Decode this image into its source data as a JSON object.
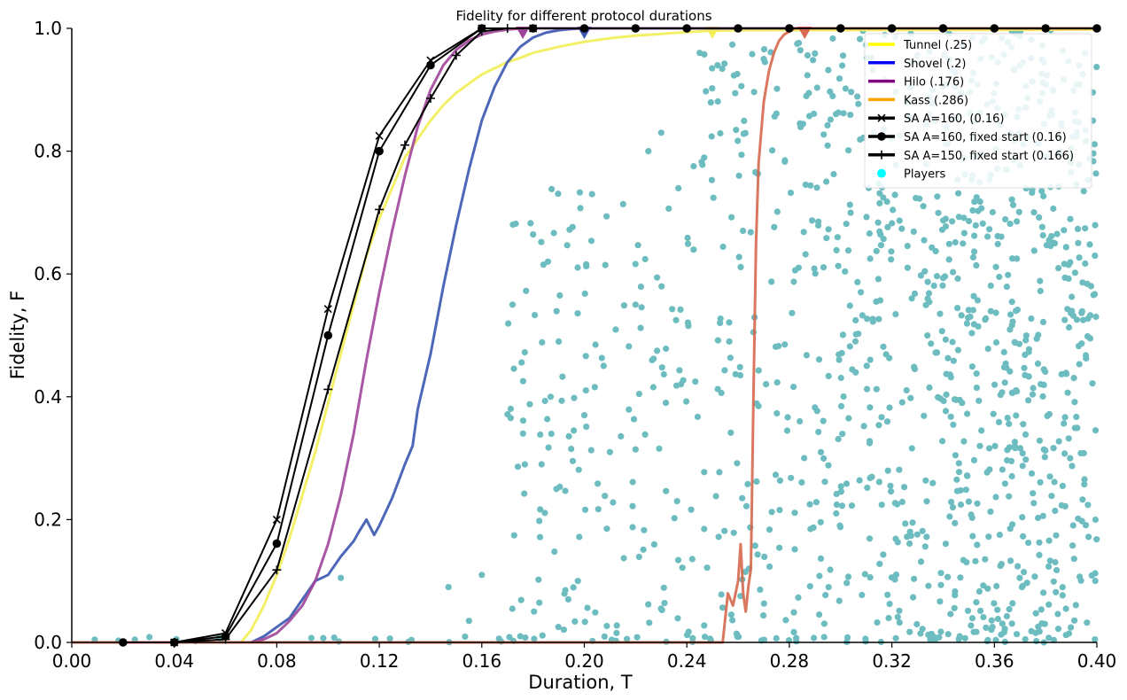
{
  "chart_data": {
    "type": "line",
    "title": "Fidelity for different protocol durations",
    "xlabel": "Duration, T",
    "ylabel": "Fidelity, F",
    "xlim": [
      0,
      0.4
    ],
    "ylim": [
      0,
      1
    ],
    "xticks": [
      "0.00",
      "0.04",
      "0.08",
      "0.12",
      "0.16",
      "0.20",
      "0.24",
      "0.28",
      "0.32",
      "0.36",
      "0.40"
    ],
    "yticks": [
      "0.0",
      "0.2",
      "0.4",
      "0.6",
      "0.8",
      "1.0"
    ],
    "legend_position": "top-right",
    "series": [
      {
        "name": "Tunnel (.25)",
        "color": "#f2ee58",
        "legend_color": "#ffff00",
        "marker": "triangle-down",
        "marker_at": [
          0.25,
          1.0
        ],
        "x": [
          0.066,
          0.07,
          0.075,
          0.08,
          0.085,
          0.09,
          0.095,
          0.1,
          0.105,
          0.11,
          0.115,
          0.12,
          0.125,
          0.13,
          0.135,
          0.14,
          0.145,
          0.15,
          0.155,
          0.16,
          0.165,
          0.17,
          0.175,
          0.18,
          0.19,
          0.2,
          0.21,
          0.22,
          0.23,
          0.24,
          0.25,
          0.26,
          0.4
        ],
        "y": [
          0.0,
          0.02,
          0.06,
          0.11,
          0.17,
          0.24,
          0.31,
          0.39,
          0.47,
          0.55,
          0.63,
          0.69,
          0.74,
          0.79,
          0.82,
          0.85,
          0.875,
          0.895,
          0.91,
          0.925,
          0.935,
          0.945,
          0.952,
          0.96,
          0.97,
          0.978,
          0.984,
          0.988,
          0.991,
          0.994,
          0.996,
          0.997,
          0.998
        ]
      },
      {
        "name": "Shovel (.2)",
        "color": "#3a56b0",
        "legend_color": "#0000ff",
        "marker": "triangle-down",
        "marker_at": [
          0.2,
          1.0
        ],
        "x": [
          0.07,
          0.075,
          0.08,
          0.085,
          0.09,
          0.095,
          0.1,
          0.105,
          0.11,
          0.112,
          0.115,
          0.118,
          0.12,
          0.125,
          0.13,
          0.133,
          0.135,
          0.14,
          0.145,
          0.15,
          0.155,
          0.16,
          0.165,
          0.17,
          0.175,
          0.18,
          0.185,
          0.19,
          0.195,
          0.2,
          0.21,
          0.4
        ],
        "y": [
          0.0,
          0.01,
          0.025,
          0.04,
          0.07,
          0.1,
          0.11,
          0.14,
          0.165,
          0.18,
          0.2,
          0.175,
          0.19,
          0.235,
          0.29,
          0.32,
          0.38,
          0.47,
          0.58,
          0.68,
          0.77,
          0.85,
          0.905,
          0.945,
          0.97,
          0.985,
          0.993,
          0.997,
          0.999,
          1.0,
          1.0,
          1.0
        ]
      },
      {
        "name": "Hilo (.176)",
        "color": "#a0449a",
        "legend_color": "#800080",
        "marker": "triangle-down",
        "marker_at": [
          0.176,
          1.0
        ],
        "x": [
          0.07,
          0.075,
          0.08,
          0.085,
          0.09,
          0.095,
          0.1,
          0.105,
          0.11,
          0.115,
          0.12,
          0.125,
          0.13,
          0.135,
          0.14,
          0.145,
          0.15,
          0.155,
          0.16,
          0.165,
          0.17,
          0.176,
          0.4
        ],
        "y": [
          0.0,
          0.005,
          0.015,
          0.035,
          0.06,
          0.1,
          0.16,
          0.24,
          0.34,
          0.46,
          0.57,
          0.67,
          0.76,
          0.84,
          0.9,
          0.94,
          0.965,
          0.98,
          0.99,
          0.995,
          0.998,
          1.0,
          1.0
        ]
      },
      {
        "name": "Kass (.286)",
        "color": "#d5684e",
        "legend_color": "#ffa500",
        "marker": "triangle-down",
        "marker_at": [
          0.286,
          1.0
        ],
        "x": [
          0.0,
          0.254,
          0.256,
          0.258,
          0.26,
          0.261,
          0.262,
          0.263,
          0.264,
          0.265,
          0.266,
          0.267,
          0.268,
          0.27,
          0.272,
          0.274,
          0.276,
          0.278,
          0.28,
          0.282,
          0.286,
          0.4
        ],
        "y": [
          0.0,
          0.0,
          0.08,
          0.06,
          0.1,
          0.16,
          0.08,
          0.05,
          0.09,
          0.12,
          0.4,
          0.65,
          0.78,
          0.88,
          0.93,
          0.96,
          0.98,
          0.99,
          0.995,
          1.0,
          1.0,
          1.0
        ]
      },
      {
        "name": "SA A=160, (0.16)",
        "color": "#000000",
        "legend_color": "#000000",
        "marker": "x",
        "x": [
          0.04,
          0.06,
          0.08,
          0.1,
          0.12,
          0.14,
          0.16,
          0.18
        ],
        "y": [
          0.0,
          0.015,
          0.2,
          0.543,
          0.825,
          0.948,
          1.0,
          1.0
        ]
      },
      {
        "name": "SA A=160, fixed start (0.16)",
        "color": "#000000",
        "legend_color": "#000000",
        "marker": "circle",
        "x": [
          0.02,
          0.04,
          0.06,
          0.08,
          0.1,
          0.12,
          0.14,
          0.16,
          0.18,
          0.2,
          0.22,
          0.24,
          0.26,
          0.28,
          0.3,
          0.32,
          0.34,
          0.36,
          0.38,
          0.4
        ],
        "y": [
          0.0,
          0.0,
          0.01,
          0.161,
          0.5,
          0.8,
          0.94,
          1.0,
          1.0,
          1.0,
          1.0,
          1.0,
          1.0,
          1.0,
          1.0,
          1.0,
          1.0,
          1.0,
          1.0,
          1.0
        ]
      },
      {
        "name": "SA A=150, fixed start (0.166)",
        "color": "#000000",
        "legend_color": "#000000",
        "marker": "plus",
        "x": [
          0.04,
          0.06,
          0.08,
          0.1,
          0.12,
          0.13,
          0.14,
          0.15,
          0.16,
          0.17
        ],
        "y": [
          0.0,
          0.005,
          0.118,
          0.412,
          0.705,
          0.81,
          0.886,
          0.956,
          0.995,
          1.0
        ]
      }
    ],
    "scatter": {
      "name": "Players",
      "color": "#6cbcc0",
      "legend_color": "#00ffff",
      "x_range": [
        0.005,
        0.4
      ],
      "y_range": [
        0,
        1
      ],
      "count": 1400,
      "points": [
        [
          0.105,
          0.105
        ],
        [
          0.155,
          0.035
        ],
        [
          0.172,
          0.55
        ],
        [
          0.19,
          0.49
        ],
        [
          0.203,
          0.73
        ],
        [
          0.2,
          0.37
        ],
        [
          0.22,
          0.55
        ],
        [
          0.225,
          0.8
        ],
        [
          0.23,
          0.83
        ],
        [
          0.21,
          0.31
        ],
        [
          0.16,
          0.11
        ],
        [
          0.147,
          0.09
        ],
        [
          0.175,
          0.01
        ],
        [
          0.245,
          0.96
        ],
        [
          0.27,
          0.95
        ],
        [
          0.252,
          0.94
        ]
      ]
    },
    "legend": [
      {
        "label": "Tunnel (.25)",
        "color": "#ffff00",
        "type": "line"
      },
      {
        "label": "Shovel (.2)",
        "color": "#0000ff",
        "type": "line"
      },
      {
        "label": "Hilo (.176)",
        "color": "#800080",
        "type": "line"
      },
      {
        "label": "Kass (.286)",
        "color": "#ffa500",
        "type": "line"
      },
      {
        "label": "SA A=160, (0.16)",
        "color": "#000000",
        "type": "line-x"
      },
      {
        "label": "SA A=160, fixed start (0.16)",
        "color": "#000000",
        "type": "line-circle"
      },
      {
        "label": "SA A=150, fixed start (0.166)",
        "color": "#000000",
        "type": "line-plus"
      },
      {
        "label": "Players",
        "color": "#00ffff",
        "type": "dot"
      }
    ]
  }
}
